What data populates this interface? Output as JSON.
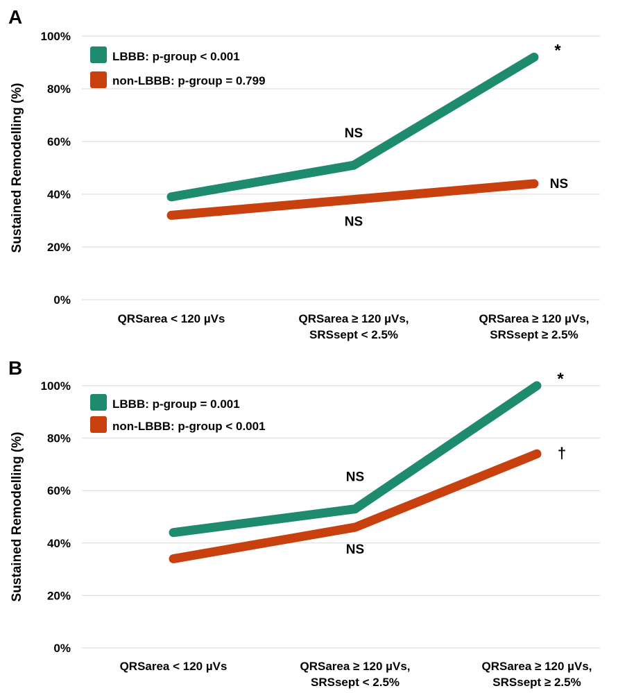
{
  "chart_data": [
    {
      "panel_label": "A",
      "type": "line",
      "ylabel": "Sustained Remodelling (%)",
      "ylim": [
        0,
        100
      ],
      "yticks": [
        "0%",
        "20%",
        "40%",
        "60%",
        "80%",
        "100%"
      ],
      "categories": [
        [
          "QRSarea < 120 µVs"
        ],
        [
          "QRSarea ≥ 120 µVs,",
          "SRSsept < 2.5%"
        ],
        [
          "QRSarea ≥ 120 µVs,",
          "SRSsept ≥ 2.5%"
        ]
      ],
      "grid": true,
      "legend_position": "top-left",
      "series": [
        {
          "name": "LBBB: p-group < 0.001",
          "color": "#1e8a6e",
          "values": [
            39,
            51,
            92
          ]
        },
        {
          "name": "non-LBBB: p-group = 0.799",
          "color": "#c8400e",
          "values": [
            32,
            38,
            44
          ]
        }
      ],
      "annotations": [
        {
          "text": "NS",
          "anchor": "above-lbbb-cat2"
        },
        {
          "text": "NS",
          "anchor": "below-nonlbbb-cat2"
        },
        {
          "text": "*",
          "anchor": "right-lbbb-cat3"
        },
        {
          "text": "NS",
          "anchor": "right-nonlbbb-cat3"
        }
      ]
    },
    {
      "panel_label": "B",
      "type": "line",
      "ylabel": "Sustained Remodelling (%)",
      "ylim": [
        0,
        100
      ],
      "yticks": [
        "0%",
        "20%",
        "40%",
        "60%",
        "80%",
        "100%"
      ],
      "categories": [
        [
          "QRSarea < 120 µVs"
        ],
        [
          "QRSarea ≥ 120 µVs,",
          "SRSsept < 2.5%"
        ],
        [
          "QRSarea ≥ 120 µVs,",
          "SRSsept ≥ 2.5%"
        ]
      ],
      "grid": true,
      "legend_position": "top-left",
      "series": [
        {
          "name": "LBBB: p-group = 0.001",
          "color": "#1e8a6e",
          "values": [
            44,
            53,
            100
          ]
        },
        {
          "name": "non-LBBB: p-group < 0.001",
          "color": "#c8400e",
          "values": [
            34,
            46,
            74
          ]
        }
      ],
      "annotations": [
        {
          "text": "NS",
          "anchor": "above-lbbb-cat2"
        },
        {
          "text": "NS",
          "anchor": "below-nonlbbb-cat2"
        },
        {
          "text": "*",
          "anchor": "right-lbbb-cat3"
        },
        {
          "text": "†",
          "anchor": "right-nonlbbb-cat3"
        }
      ]
    }
  ]
}
